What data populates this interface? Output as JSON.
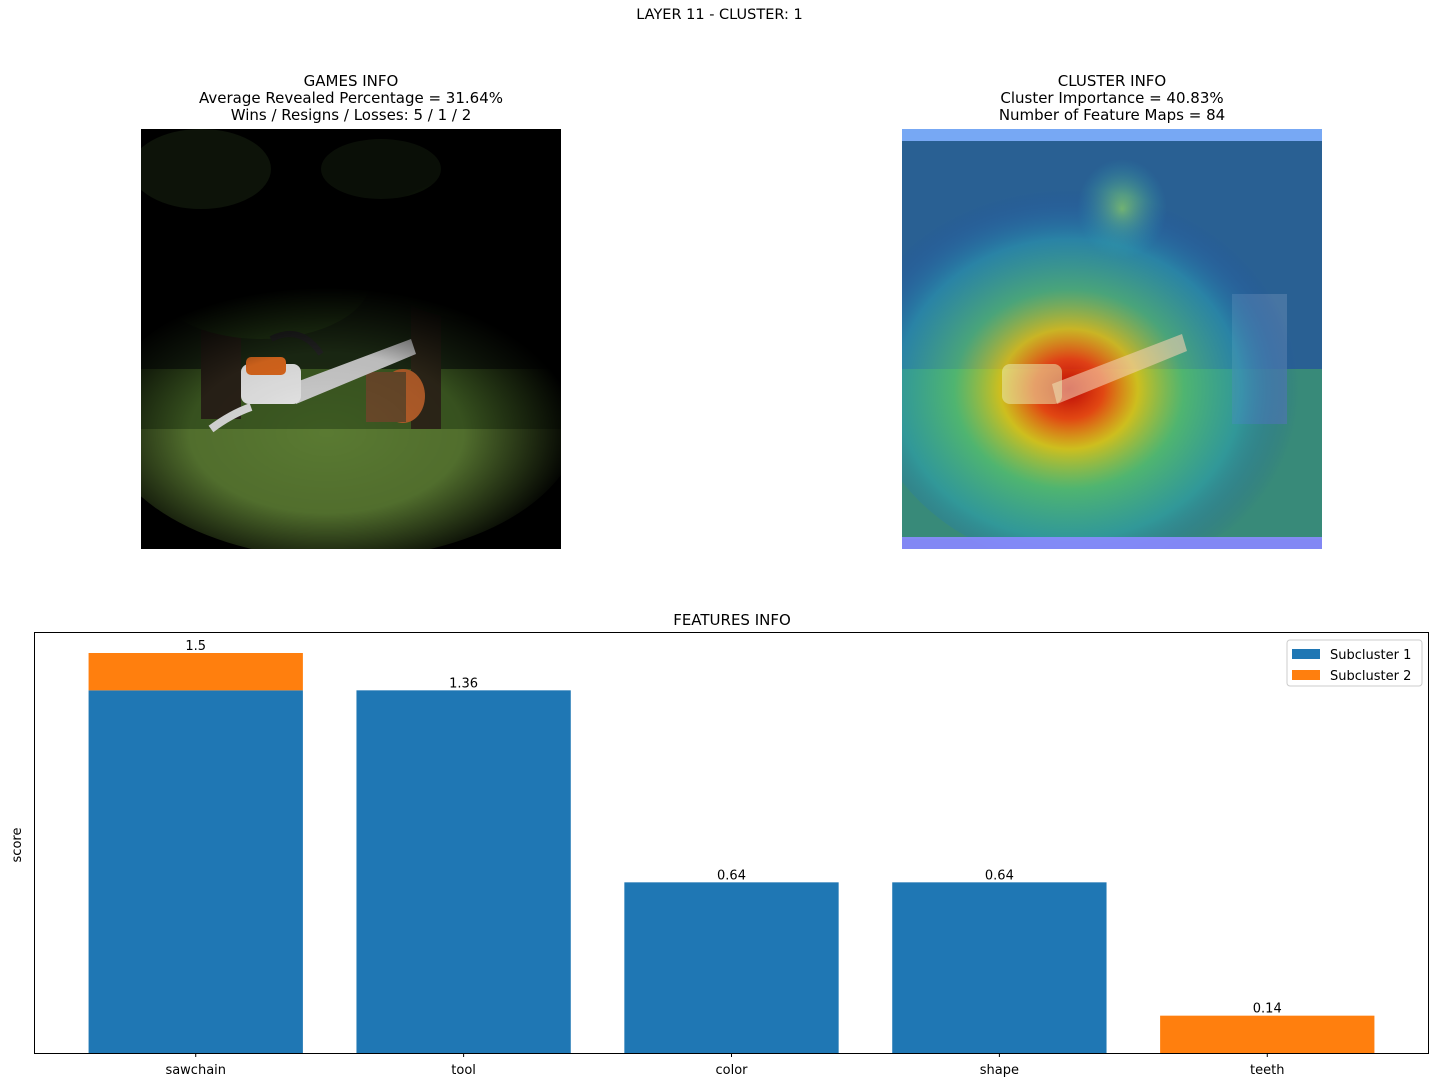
{
  "suptitle": "LAYER 11 - CLUSTER: 1",
  "games_info": {
    "title": "GAMES INFO",
    "line1": "Average Revealed Percentage = 31.64%",
    "line2": "Wins / Resigns / Losses: 5 / 1 / 2"
  },
  "cluster_info": {
    "title": "CLUSTER INFO",
    "line1": "Cluster Importance = 40.83%",
    "line2": "Number of Feature Maps = 84"
  },
  "colors": {
    "subcluster_1": "#1f77b4",
    "subcluster_2": "#ff7f0e"
  },
  "chart_data": {
    "type": "bar",
    "stacked": true,
    "title": "FEATURES INFO",
    "xlabel": "",
    "ylabel": "score",
    "categories": [
      "sawchain",
      "tool",
      "color",
      "shape",
      "teeth"
    ],
    "series": [
      {
        "name": "Subcluster 1",
        "values": [
          1.36,
          1.36,
          0.64,
          0.64,
          0
        ]
      },
      {
        "name": "Subcluster 2",
        "values": [
          0.14,
          0,
          0,
          0,
          0.14
        ]
      }
    ],
    "totals": [
      1.5,
      1.36,
      0.64,
      0.64,
      0.14
    ],
    "total_labels": [
      "1.5",
      "1.36",
      "0.64",
      "0.64",
      "0.14"
    ],
    "ylim": [
      0,
      1.575
    ],
    "y_ticks_visible": false,
    "grid": false,
    "legend_position": "upper right"
  }
}
